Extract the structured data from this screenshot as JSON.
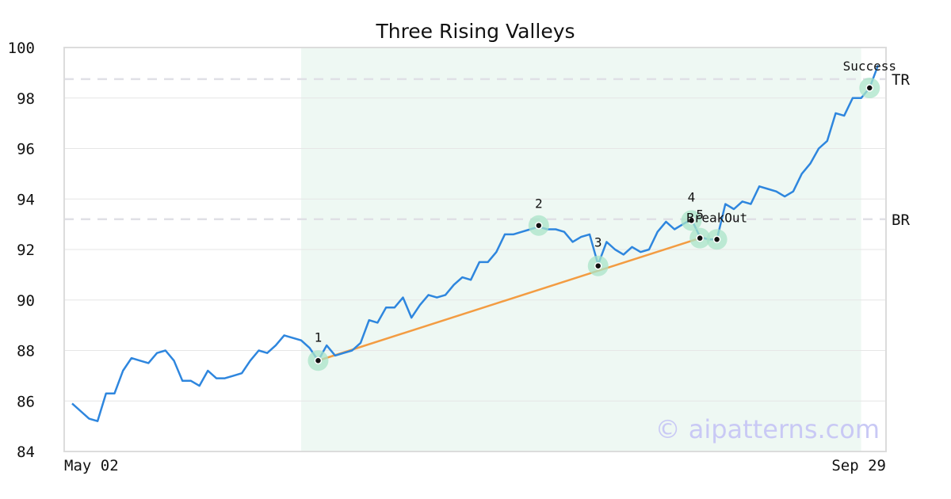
{
  "chart_data": {
    "type": "line",
    "title": "Three Rising Valleys",
    "x_tick_labels": [
      "May 02",
      "Sep 29"
    ],
    "ylim": [
      84,
      100
    ],
    "y_ticks": [
      84,
      86,
      88,
      90,
      92,
      94,
      96,
      98,
      100
    ],
    "grid": true,
    "series": [
      {
        "color": "#2e86de",
        "values": [
          85.9,
          85.6,
          85.3,
          85.2,
          86.3,
          86.3,
          87.2,
          87.7,
          87.6,
          87.5,
          87.9,
          88.0,
          87.6,
          86.8,
          86.8,
          86.6,
          87.2,
          86.9,
          86.9,
          87.0,
          87.1,
          87.6,
          88.0,
          87.9,
          88.2,
          88.6,
          88.5,
          88.4,
          88.1,
          87.6,
          88.2,
          87.8,
          87.9,
          88.0,
          88.3,
          89.2,
          89.1,
          89.7,
          89.7,
          90.1,
          89.3,
          89.8,
          90.2,
          90.1,
          90.2,
          90.6,
          90.9,
          90.8,
          91.5,
          91.5,
          91.9,
          92.6,
          92.6,
          92.7,
          92.8,
          92.9,
          92.8,
          92.8,
          92.7,
          92.3,
          92.5,
          92.6,
          91.4,
          92.3,
          92.0,
          91.8,
          92.1,
          91.9,
          92.0,
          92.7,
          93.1,
          92.8,
          93.0,
          93.2,
          92.5,
          92.4,
          92.4,
          93.8,
          93.6,
          93.9,
          93.8,
          94.5,
          94.4,
          94.3,
          94.1,
          94.3,
          95.0,
          95.4,
          96.0,
          96.3,
          97.4,
          97.3,
          98.0,
          98.0,
          98.4,
          99.3
        ]
      }
    ],
    "levels": [
      {
        "label": "TR",
        "value": 98.75
      },
      {
        "label": "BR",
        "value": 93.2
      }
    ],
    "highlight_range": [
      27,
      93
    ],
    "trendline": {
      "color": "#f39c42",
      "from": [
        29,
        87.6
      ],
      "to": [
        74,
        92.45
      ]
    },
    "markers": [
      {
        "label": "1",
        "x": 29,
        "y": 87.6
      },
      {
        "label": "2",
        "x": 55,
        "y": 92.95
      },
      {
        "label": "3",
        "x": 62,
        "y": 91.35
      },
      {
        "label": "4",
        "x": 73,
        "y": 93.15
      },
      {
        "label": "5",
        "x": 74,
        "y": 92.45
      },
      {
        "label": "BreakOut",
        "x": 76,
        "y": 92.4
      },
      {
        "label": "Success",
        "x": 94,
        "y": 98.4
      }
    ],
    "watermark": "© aipatterns.com"
  }
}
